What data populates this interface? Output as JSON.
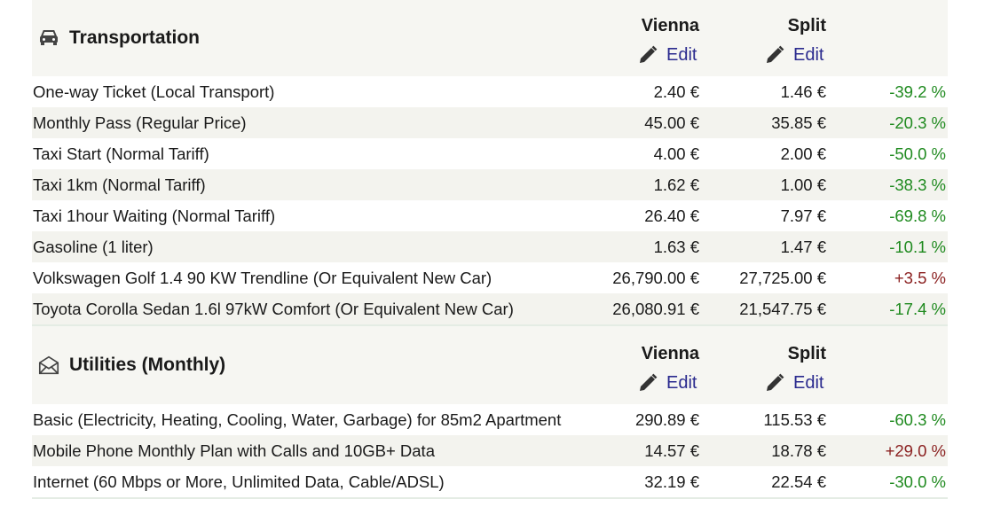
{
  "sections": [
    {
      "title": "Transportation",
      "icon": "car-icon",
      "city1": "Vienna",
      "city2": "Split",
      "edit_label": "Edit",
      "rows": [
        {
          "label": "One-way Ticket (Local Transport)",
          "v1": "2.40 €",
          "v2": "1.46 €",
          "diff": "-39.2 %"
        },
        {
          "label": "Monthly Pass (Regular Price)",
          "v1": "45.00 €",
          "v2": "35.85 €",
          "diff": "-20.3 %"
        },
        {
          "label": "Taxi Start (Normal Tariff)",
          "v1": "4.00 €",
          "v2": "2.00 €",
          "diff": "-50.0 %"
        },
        {
          "label": "Taxi 1km (Normal Tariff)",
          "v1": "1.62 €",
          "v2": "1.00 €",
          "diff": "-38.3 %"
        },
        {
          "label": "Taxi 1hour Waiting (Normal Tariff)",
          "v1": "26.40 €",
          "v2": "7.97 €",
          "diff": "-69.8 %"
        },
        {
          "label": "Gasoline (1 liter)",
          "v1": "1.63 €",
          "v2": "1.47 €",
          "diff": "-10.1 %"
        },
        {
          "label": "Volkswagen Golf 1.4 90 KW Trendline (Or Equivalent New Car)",
          "v1": "26,790.00 €",
          "v2": "27,725.00 €",
          "diff": "+3.5 %"
        },
        {
          "label": "Toyota Corolla Sedan 1.6l 97kW Comfort (Or Equivalent New Car)",
          "v1": "26,080.91 €",
          "v2": "21,547.75 €",
          "diff": "-17.4 %"
        }
      ]
    },
    {
      "title": "Utilities (Monthly)",
      "icon": "envelope-icon",
      "city1": "Vienna",
      "city2": "Split",
      "edit_label": "Edit",
      "rows": [
        {
          "label": "Basic (Electricity, Heating, Cooling, Water, Garbage) for 85m2 Apartment",
          "v1": "290.89 €",
          "v2": "115.53 €",
          "diff": "-60.3 %"
        },
        {
          "label": "Mobile Phone Monthly Plan with Calls and 10GB+ Data",
          "v1": "14.57 €",
          "v2": "18.78 €",
          "diff": "+29.0 %"
        },
        {
          "label": "Internet (60 Mbps or More, Unlimited Data, Cable/ADSL)",
          "v1": "32.19 €",
          "v2": "22.54 €",
          "diff": "-30.0 %"
        }
      ]
    }
  ],
  "colors": {
    "negative": "#1f8a1f",
    "positive": "#8a1f1f",
    "edit_link": "#2a2a8e",
    "row_alt": "#f3f3ee"
  }
}
